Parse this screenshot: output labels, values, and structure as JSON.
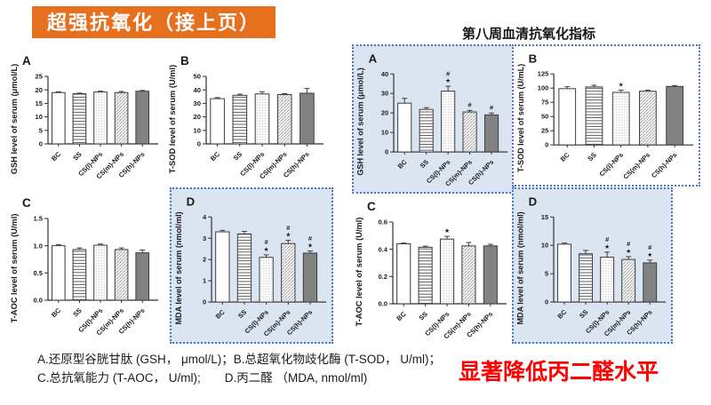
{
  "slide": {
    "banner": {
      "label": "超强抗氧化（接上页）"
    },
    "right_title": "第八周血清抗氧化指标",
    "footnote_line1": "A.还原型谷胱甘肽 (GSH， μmol/L)；B.总超氧化物歧化酶 (T-SOD， U/ml)；",
    "footnote_line2": "C.总抗氧能力 (T-AOC， U/ml);　　D.丙二醛 （MDA, nmol/ml)",
    "highlight_text": "显著降低丙二醛水平",
    "colors": {
      "banner_bg": "#E7701E",
      "banner_text": "#FFFFFF",
      "box_fill": "#DBE5F1",
      "box_border": "#4B77C8",
      "highlight": "#FF0000",
      "bar_dark": "#828282",
      "axis": "#2E2E2E"
    }
  },
  "chart_data": [
    {
      "id": "left-A",
      "panel": "A",
      "type": "bar",
      "boxed": false,
      "ylabel": "GSH level of serum (μmol/L)",
      "ylim": [
        0,
        25
      ],
      "yticks": [
        "0",
        "5",
        "10",
        "15",
        "20",
        "25"
      ],
      "categories": [
        "BC",
        "SS",
        "CS(l)-NPs",
        "CS(m)-NPs",
        "CS(h)-NPs"
      ],
      "values": [
        19.0,
        18.6,
        19.2,
        19.0,
        19.5
      ],
      "errors": [
        0.3,
        0.2,
        0.3,
        0.4,
        0.3
      ],
      "sig": [
        [],
        [],
        [],
        [],
        []
      ]
    },
    {
      "id": "left-B",
      "panel": "B",
      "type": "bar",
      "boxed": false,
      "ylabel": "T-SOD level of serum (U/ml)",
      "ylim": [
        0,
        50
      ],
      "yticks": [
        "0",
        "10",
        "20",
        "30",
        "40",
        "50"
      ],
      "categories": [
        "BC",
        "SS",
        "CS(l)-NPs",
        "CS(m)-NPs",
        "CS(h)-NPs"
      ],
      "values": [
        33.5,
        36.0,
        37.0,
        36.5,
        37.5
      ],
      "errors": [
        0.8,
        0.8,
        1.6,
        0.7,
        3.5
      ],
      "sig": [
        [],
        [],
        [],
        [],
        []
      ]
    },
    {
      "id": "left-C",
      "panel": "C",
      "type": "bar",
      "boxed": false,
      "ylabel": "T-AOC level of serum (U/ml)",
      "ylim": [
        0,
        1.5
      ],
      "yticks": [
        "0.0",
        "0.5",
        "1.0",
        "1.5"
      ],
      "categories": [
        "BC",
        "SS",
        "CS(l)-NPs",
        "CS(m)-NPs",
        "CS(h)-NPs"
      ],
      "values": [
        1.0,
        0.93,
        1.01,
        0.93,
        0.87
      ],
      "errors": [
        0.02,
        0.03,
        0.02,
        0.03,
        0.05
      ],
      "sig": [
        [],
        [],
        [],
        [],
        []
      ]
    },
    {
      "id": "left-D",
      "panel": "D",
      "type": "bar",
      "boxed": true,
      "ylabel": "MDA level of serum (nmol/ml)",
      "ylim": [
        0,
        4
      ],
      "yticks": [
        "0",
        "1",
        "2",
        "3",
        "4"
      ],
      "categories": [
        "BC",
        "SS",
        "CS(l)-NPs",
        "CS(m)-NPs",
        "CS(h)-NPs"
      ],
      "values": [
        3.3,
        3.2,
        2.1,
        2.75,
        2.3
      ],
      "errors": [
        0.07,
        0.12,
        0.12,
        0.15,
        0.1
      ],
      "sig": [
        [],
        [],
        [
          "#",
          "*"
        ],
        [
          "#",
          "*"
        ],
        [
          "#",
          "*"
        ]
      ]
    },
    {
      "id": "right-A",
      "panel": "A",
      "type": "bar",
      "boxed": true,
      "ylabel": "GSH level of serum (μmol/L)",
      "ylim": [
        0,
        40
      ],
      "yticks": [
        "0",
        "10",
        "20",
        "30",
        "40"
      ],
      "categories": [
        "BC",
        "SS",
        "CS(l)-NPs",
        "CS(m)-NPs",
        "CS(h)-NPs"
      ],
      "values": [
        25.0,
        21.8,
        31.2,
        20.5,
        19.0
      ],
      "errors": [
        2.5,
        0.9,
        2.5,
        0.8,
        1.0
      ],
      "sig": [
        [],
        [],
        [
          "#",
          "*"
        ],
        [
          "#"
        ],
        [
          "#"
        ]
      ]
    },
    {
      "id": "right-B",
      "panel": "B",
      "type": "bar",
      "boxed": true,
      "ylabel": "T-SOD level of serum (U/mL)",
      "ylim": [
        0,
        125
      ],
      "yticks": [
        "0",
        "25",
        "50",
        "75",
        "100",
        "125"
      ],
      "categories": [
        "BC",
        "SS",
        "CS(l)-NPs",
        "CS(m)-NPs",
        "CS(h)-NPs"
      ],
      "values": [
        99.0,
        102.0,
        92.5,
        94.5,
        103.0
      ],
      "errors": [
        3.5,
        3.0,
        4.0,
        2.0,
        1.5
      ],
      "sig": [
        [],
        [],
        [
          "*"
        ],
        [],
        []
      ]
    },
    {
      "id": "right-C",
      "panel": "C",
      "type": "bar",
      "boxed": false,
      "ylabel": "T-AOC level of serum (U/ml)",
      "ylim": [
        0,
        0.6
      ],
      "yticks": [
        "0.0",
        "0.2",
        "0.4",
        "0.6"
      ],
      "categories": [
        "BC",
        "SS",
        "CS(l)-NPs",
        "CS(m)-NPs",
        "CS(h)-NPs"
      ],
      "values": [
        0.44,
        0.415,
        0.475,
        0.425,
        0.425
      ],
      "errors": [
        0.006,
        0.008,
        0.02,
        0.025,
        0.012
      ],
      "sig": [
        [],
        [],
        [
          "*"
        ],
        [],
        []
      ]
    },
    {
      "id": "right-D",
      "panel": "D",
      "type": "bar",
      "boxed": true,
      "ylabel": "MDA level of serum (nmol/ml)",
      "ylim": [
        0,
        15
      ],
      "yticks": [
        "0",
        "5",
        "10",
        "15"
      ],
      "categories": [
        "BC",
        "SS",
        "CS(l)-NPs",
        "CS(m)-NPs",
        "CS(h)-NPs"
      ],
      "values": [
        10.2,
        8.5,
        7.9,
        7.5,
        6.9
      ],
      "errors": [
        0.2,
        0.6,
        0.9,
        0.5,
        0.5
      ],
      "sig": [
        [],
        [],
        [
          "#",
          "*"
        ],
        [
          "#",
          "*"
        ],
        [
          "#",
          "*"
        ]
      ]
    }
  ]
}
